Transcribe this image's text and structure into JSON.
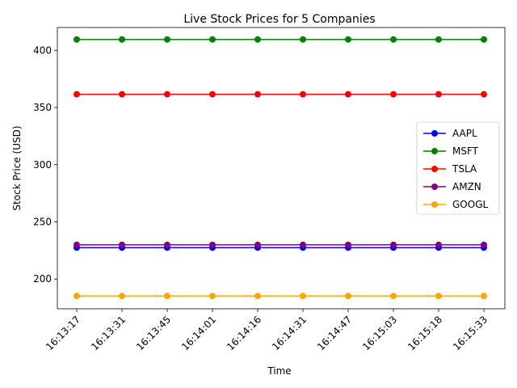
{
  "chart_data": {
    "type": "line",
    "title": "Live Stock Prices for 5 Companies",
    "xlabel": "Time",
    "ylabel": "Stock Price (USD)",
    "categories": [
      "16:13:17",
      "16:13:31",
      "16:13:45",
      "16:14:01",
      "16:14:16",
      "16:14:31",
      "16:14:47",
      "16:15:03",
      "16:15:18",
      "16:15:33"
    ],
    "ylim": [
      174,
      420
    ],
    "yticks": [
      200,
      250,
      300,
      350,
      400
    ],
    "grid": false,
    "legend_position": "center-right",
    "series": [
      {
        "name": "AAPL",
        "color": "#0000ff",
        "values": [
          227.5,
          227.5,
          227.5,
          227.5,
          227.5,
          227.5,
          227.5,
          227.5,
          227.5,
          227.5
        ]
      },
      {
        "name": "MSFT",
        "color": "#008000",
        "values": [
          409.5,
          409.5,
          409.5,
          409.5,
          409.5,
          409.5,
          409.5,
          409.5,
          409.5,
          409.5
        ]
      },
      {
        "name": "TSLA",
        "color": "#ff0000",
        "values": [
          361.6,
          361.6,
          361.6,
          361.6,
          361.6,
          361.6,
          361.6,
          361.6,
          361.6,
          361.6
        ]
      },
      {
        "name": "AMZN",
        "color": "#800080",
        "values": [
          229.9,
          229.9,
          229.9,
          229.9,
          229.9,
          229.9,
          229.9,
          229.9,
          229.9,
          229.9
        ]
      },
      {
        "name": "GOOGL",
        "color": "#ffa500",
        "values": [
          185.2,
          185.2,
          185.2,
          185.2,
          185.2,
          185.2,
          185.2,
          185.2,
          185.2,
          185.2
        ]
      }
    ]
  }
}
